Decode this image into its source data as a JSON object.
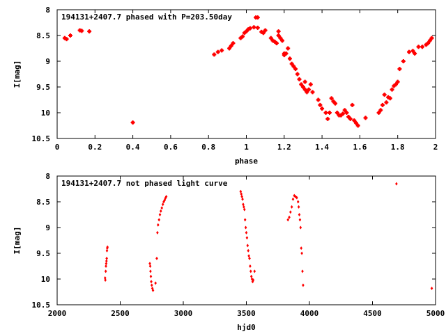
{
  "chart_data": [
    {
      "type": "scatter",
      "title": "194131+2407.7 phased with P=203.50day",
      "xlabel": "phase",
      "ylabel": "I[mag]",
      "xlim": [
        0,
        2
      ],
      "ylim": [
        10.5,
        8
      ],
      "y_inverted": true,
      "xticks": [
        "0",
        "0.2",
        "0.4",
        "0.6",
        "0.8",
        "1",
        "1.2",
        "1.4",
        "1.6",
        "1.8",
        "2"
      ],
      "yticks": [
        "8",
        "8.5",
        "9",
        "9.5",
        "10",
        "10.5"
      ],
      "marker": "cross",
      "color": "#ff0000",
      "grid": false,
      "legend": "none",
      "series": [
        {
          "x": [
            0.04,
            0.05,
            0.07,
            0.12,
            0.13,
            0.17,
            0.4,
            0.83,
            0.85,
            0.87,
            0.91,
            0.92,
            0.93,
            0.97,
            0.98,
            0.99,
            1.0,
            1.01,
            1.02,
            1.04,
            1.05,
            1.06,
            1.06,
            1.08,
            1.09,
            1.1,
            1.13,
            1.14,
            1.15,
            1.16,
            1.17,
            1.17,
            1.18,
            1.19,
            1.2,
            1.2,
            1.21,
            1.22,
            1.23,
            1.24,
            1.25,
            1.26,
            1.27,
            1.28,
            1.29,
            1.3,
            1.31,
            1.31,
            1.32,
            1.33,
            1.34,
            1.35,
            1.38,
            1.39,
            1.4,
            1.42,
            1.43,
            1.44,
            1.45,
            1.46,
            1.47,
            1.48,
            1.49,
            1.5,
            1.51,
            1.52,
            1.53,
            1.54,
            1.55,
            1.56,
            1.57,
            1.58,
            1.59,
            1.63,
            1.7,
            1.71,
            1.72,
            1.73,
            1.74,
            1.75,
            1.76,
            1.77,
            1.78,
            1.79,
            1.8,
            1.81,
            1.83,
            1.86,
            1.88,
            1.89,
            1.91,
            1.93,
            1.95,
            1.96,
            1.97,
            1.98
          ],
          "y": [
            8.55,
            8.57,
            8.5,
            8.4,
            8.41,
            8.42,
            10.19,
            8.87,
            8.82,
            8.79,
            8.75,
            8.7,
            8.65,
            8.55,
            8.52,
            8.45,
            8.42,
            8.38,
            8.36,
            8.34,
            8.15,
            8.15,
            8.35,
            8.43,
            8.45,
            8.4,
            8.55,
            8.6,
            8.62,
            8.65,
            8.42,
            8.5,
            8.55,
            8.6,
            8.85,
            8.88,
            8.85,
            8.75,
            8.95,
            9.05,
            9.1,
            9.15,
            9.25,
            9.35,
            9.45,
            9.5,
            9.4,
            9.55,
            9.6,
            9.55,
            9.45,
            9.6,
            9.75,
            9.85,
            9.92,
            10.0,
            10.12,
            10.0,
            9.72,
            9.78,
            9.82,
            10.0,
            10.05,
            10.05,
            10.02,
            9.95,
            10.0,
            10.08,
            10.12,
            9.85,
            10.15,
            10.2,
            10.25,
            10.1,
            10.0,
            9.95,
            9.85,
            9.65,
            9.8,
            9.7,
            9.72,
            9.55,
            9.48,
            9.45,
            9.4,
            9.15,
            9.0,
            8.82,
            8.8,
            8.85,
            8.72,
            8.72,
            8.68,
            8.65,
            8.6,
            8.55
          ]
        }
      ]
    },
    {
      "type": "scatter",
      "title": "194131+2407.7 not phased light curve",
      "xlabel": "hjd0",
      "ylabel": "I[mag]",
      "xlim": [
        2000,
        5000
      ],
      "ylim": [
        10.5,
        8
      ],
      "y_inverted": true,
      "xticks": [
        "2000",
        "2500",
        "3000",
        "3500",
        "4000",
        "4500",
        "5000"
      ],
      "yticks": [
        "8",
        "8.5",
        "9",
        "9.5",
        "10",
        "10.5"
      ],
      "marker": "diamond",
      "color": "#ff0000",
      "grid": false,
      "legend": "none",
      "series": [
        {
          "x": [
            2380,
            2382,
            2385,
            2387,
            2389,
            2391,
            2393,
            2395,
            2397,
            2399,
            2735,
            2738,
            2740,
            2743,
            2746,
            2750,
            2755,
            2760,
            2780,
            2790,
            2795,
            2800,
            2808,
            2815,
            2822,
            2830,
            2838,
            2845,
            2852,
            2858,
            2865,
            3455,
            3460,
            3465,
            3470,
            3475,
            3480,
            3485,
            3490,
            3495,
            3500,
            3505,
            3510,
            3515,
            3520,
            3525,
            3530,
            3535,
            3540,
            3545,
            3550,
            3555,
            3565,
            3830,
            3840,
            3850,
            3860,
            3870,
            3880,
            3890,
            3900,
            3910,
            3915,
            3920,
            3925,
            3930,
            3935,
            3940,
            3945,
            3950,
            4690,
            4970
          ],
          "y": [
            9.98,
            10.02,
            9.85,
            9.75,
            9.7,
            9.65,
            9.6,
            9.45,
            9.4,
            9.38,
            9.7,
            9.75,
            9.85,
            9.95,
            10.05,
            10.12,
            10.18,
            10.22,
            10.08,
            9.6,
            9.1,
            8.95,
            8.85,
            8.75,
            8.68,
            8.62,
            8.55,
            8.5,
            8.47,
            8.43,
            8.4,
            8.3,
            8.35,
            8.4,
            8.45,
            8.55,
            8.6,
            8.65,
            8.85,
            9.0,
            9.1,
            9.2,
            9.35,
            9.45,
            9.55,
            9.6,
            9.75,
            9.85,
            9.95,
            10.0,
            10.05,
            10.02,
            9.85,
            8.85,
            8.8,
            8.7,
            8.6,
            8.45,
            8.38,
            8.4,
            8.42,
            8.5,
            8.6,
            8.75,
            8.85,
            9.0,
            9.4,
            9.5,
            9.85,
            10.12,
            8.15,
            10.18
          ]
        }
      ]
    }
  ]
}
